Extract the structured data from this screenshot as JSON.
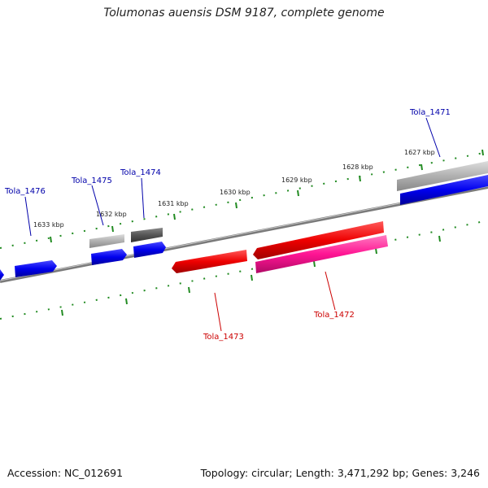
{
  "title": "Tolumonas auensis DSM 9187, complete genome",
  "footer": {
    "accession": "Accession: NC_012691",
    "summary": "Topology: circular; Length: 3,471,292 bp; Genes: 3,246"
  },
  "ticks": [
    "1627 kbp",
    "1628 kbp",
    "1629 kbp",
    "1630 kbp",
    "1631 kbp",
    "1632 kbp",
    "1633 kbp"
  ],
  "genes": [
    {
      "name": "Tola_1471",
      "strand": "forward",
      "color": "#0000ee"
    },
    {
      "name": "Tola_1472",
      "strand": "reverse",
      "color": "#ff1493"
    },
    {
      "name": "Tola_1473",
      "strand": "reverse",
      "color": "#ee0000"
    },
    {
      "name": "Tola_1474",
      "strand": "forward",
      "color": "#0000ee"
    },
    {
      "name": "Tola_1475",
      "strand": "forward",
      "color": "#0000ee"
    },
    {
      "name": "Tola_1476",
      "strand": "forward",
      "color": "#0000ee"
    }
  ],
  "colors": {
    "forward_cds": "#0000ee",
    "reverse_cds": "#ee0000",
    "reverse_cds_alt": "#ff1493",
    "forward_label": "#0000aa",
    "reverse_label": "#cc0000",
    "gene_track": "#b0b0b0",
    "gene_track_dark": "#555555",
    "backbone": "#888888",
    "tick": "#228b22"
  }
}
